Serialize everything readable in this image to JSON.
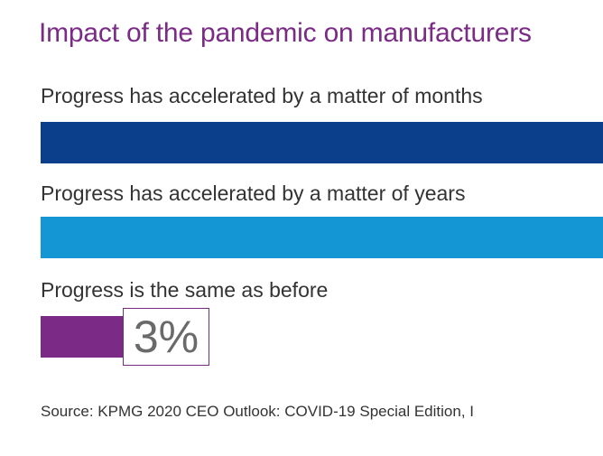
{
  "chart_data": {
    "type": "bar",
    "orientation": "horizontal",
    "title": "Impact of the pandemic on manufacturers",
    "categories": [
      "Progress has accelerated by a matter of months",
      "Progress has accelerated by a matter of years",
      "Progress is the same as before"
    ],
    "values": [
      null,
      null,
      3
    ],
    "value_labels": [
      "",
      "",
      "3%"
    ],
    "colors": [
      "#0b3f8c",
      "#1496d4",
      "#7b2a86"
    ],
    "title_color": "#7b2a86",
    "source": "Source: KPMG 2020  CEO Outlook: COVID-19 Special Edition, I"
  }
}
